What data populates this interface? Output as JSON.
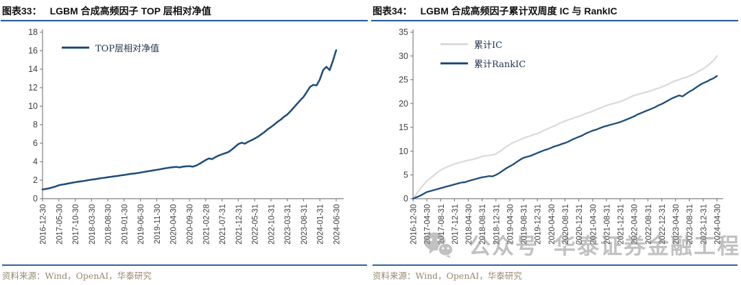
{
  "page": {
    "background": "#ffffff"
  },
  "colors": {
    "accent_navy": "#1F4E79",
    "light_gray_series": "#D9D9D9",
    "rule_blue": "#30609C",
    "axis_line": "#808080",
    "axis_text": "#404040",
    "source_text": "#97876F",
    "watermark_gray": "#8F8F8F"
  },
  "panels": [
    {
      "fig_label": "图表33：",
      "title": "LGBM 合成高频因子 TOP 层相对净值",
      "source": "资料来源：Wind，OpenAI，华泰研究"
    },
    {
      "fig_label": "图表34：",
      "title": "LGBM 合成高频因子累计双周度 IC 与 RankIC",
      "source": "资料来源：Wind，OpenAI，华泰研究"
    }
  ],
  "watermark": {
    "icon": "wechat-icon",
    "text_1": "公众号",
    "text_2": "华泰证券金融工程"
  },
  "chart_data": [
    {
      "id": "nav",
      "type": "line",
      "title": "LGBM 合成高频因子 TOP 层相对净值",
      "xlabel": "",
      "ylabel": "",
      "ylim": [
        0,
        18
      ],
      "yticks": [
        0,
        2,
        4,
        6,
        8,
        10,
        12,
        14,
        16,
        18
      ],
      "grid": false,
      "legend_position": "top-left-inside",
      "x_labels": [
        "2016-12-30",
        "2017-05-30",
        "2017-10-30",
        "2018-03-30",
        "2018-08-30",
        "2019-01-30",
        "2019-06-30",
        "2019-11-30",
        "2020-04-30",
        "2020-09-30",
        "2021-02-28",
        "2021-07-31",
        "2021-12-31",
        "2022-05-31",
        "2022-10-31",
        "2023-03-31",
        "2023-08-31",
        "2024-01-31",
        "2024-06-30"
      ],
      "series": [
        {
          "name": "TOP层相对净值",
          "color": "#1F4E79",
          "width": 2.6,
          "values": [
            1.0,
            1.05,
            1.12,
            1.22,
            1.32,
            1.45,
            1.52,
            1.58,
            1.65,
            1.72,
            1.78,
            1.84,
            1.88,
            1.93,
            2.0,
            2.06,
            2.1,
            2.16,
            2.22,
            2.26,
            2.32,
            2.36,
            2.42,
            2.46,
            2.52,
            2.56,
            2.62,
            2.68,
            2.72,
            2.76,
            2.82,
            2.88,
            2.95,
            3.0,
            3.06,
            3.12,
            3.18,
            3.25,
            3.3,
            3.36,
            3.4,
            3.44,
            3.38,
            3.46,
            3.5,
            3.52,
            3.46,
            3.56,
            3.75,
            3.96,
            4.18,
            4.35,
            4.28,
            4.5,
            4.66,
            4.8,
            4.92,
            5.05,
            5.3,
            5.6,
            5.9,
            6.05,
            5.95,
            6.15,
            6.32,
            6.5,
            6.7,
            6.95,
            7.2,
            7.5,
            7.75,
            8.0,
            8.3,
            8.55,
            8.85,
            9.1,
            9.45,
            9.85,
            10.25,
            10.65,
            11.0,
            11.55,
            12.1,
            12.3,
            12.25,
            12.9,
            13.9,
            14.25,
            13.9,
            14.9,
            16.05
          ]
        }
      ]
    },
    {
      "id": "ic",
      "type": "line",
      "title": "LGBM 合成高频因子累计双周度 IC 与 RankIC",
      "xlabel": "",
      "ylabel": "",
      "ylim": [
        0,
        35
      ],
      "yticks": [
        0,
        5,
        10,
        15,
        20,
        25,
        30,
        35
      ],
      "grid": false,
      "legend_position": "top-left-inside",
      "x_labels": [
        "2016-12-30",
        "2017-04-30",
        "2017-08-31",
        "2017-12-31",
        "2018-04-30",
        "2018-08-31",
        "2018-12-31",
        "2019-04-30",
        "2019-08-31",
        "2019-12-31",
        "2020-04-30",
        "2020-08-31",
        "2020-12-31",
        "2021-04-30",
        "2021-08-31",
        "2021-12-31",
        "2022-04-30",
        "2022-08-31",
        "2022-12-31",
        "2023-04-30",
        "2023-08-31",
        "2023-12-31",
        "2024-04-30"
      ],
      "series": [
        {
          "name": "累计IC",
          "color": "#D9D9D9",
          "width": 2.2,
          "values": [
            0.0,
            1.0,
            2.0,
            2.9,
            3.7,
            4.3,
            4.9,
            5.5,
            6.0,
            6.4,
            6.7,
            7.0,
            7.3,
            7.5,
            7.7,
            7.9,
            8.1,
            8.2,
            8.4,
            8.6,
            8.9,
            9.0,
            9.1,
            9.2,
            9.4,
            9.9,
            10.4,
            10.9,
            11.4,
            11.8,
            12.1,
            12.4,
            12.7,
            13.0,
            13.2,
            13.5,
            13.7,
            14.0,
            14.4,
            14.7,
            15.0,
            15.3,
            15.7,
            16.0,
            16.3,
            16.6,
            16.8,
            17.1,
            17.3,
            17.6,
            17.9,
            18.1,
            18.4,
            18.7,
            19.0,
            19.3,
            19.6,
            19.8,
            20.0,
            20.2,
            20.4,
            20.7,
            21.0,
            21.4,
            21.7,
            21.9,
            22.1,
            22.3,
            22.5,
            22.7,
            23.0,
            23.2,
            23.5,
            23.8,
            24.1,
            24.5,
            24.8,
            25.0,
            25.3,
            25.5,
            25.8,
            26.1,
            26.5,
            26.9,
            27.3,
            27.8,
            28.4,
            29.1,
            30.0
          ]
        },
        {
          "name": "累计RankIC",
          "color": "#1F4E79",
          "width": 2.4,
          "values": [
            0.0,
            0.3,
            0.6,
            1.0,
            1.4,
            1.6,
            1.8,
            2.0,
            2.2,
            2.4,
            2.6,
            2.8,
            3.0,
            3.2,
            3.4,
            3.45,
            3.7,
            3.9,
            4.1,
            4.3,
            4.5,
            4.6,
            4.75,
            4.7,
            5.0,
            5.4,
            5.9,
            6.4,
            6.8,
            7.2,
            7.7,
            8.2,
            8.6,
            8.8,
            9.0,
            9.3,
            9.6,
            9.9,
            10.2,
            10.4,
            10.7,
            11.0,
            11.2,
            11.5,
            11.7,
            12.0,
            12.4,
            12.7,
            13.0,
            13.3,
            13.7,
            14.0,
            14.3,
            14.5,
            14.8,
            15.1,
            15.3,
            15.5,
            15.7,
            15.9,
            16.1,
            16.4,
            16.7,
            17.0,
            17.3,
            17.7,
            18.0,
            18.3,
            18.6,
            18.9,
            19.2,
            19.6,
            19.9,
            20.3,
            20.7,
            21.1,
            21.4,
            21.7,
            21.5,
            22.0,
            22.5,
            22.9,
            23.4,
            23.9,
            24.3,
            24.6,
            25.0,
            25.3,
            25.8
          ]
        }
      ]
    }
  ]
}
